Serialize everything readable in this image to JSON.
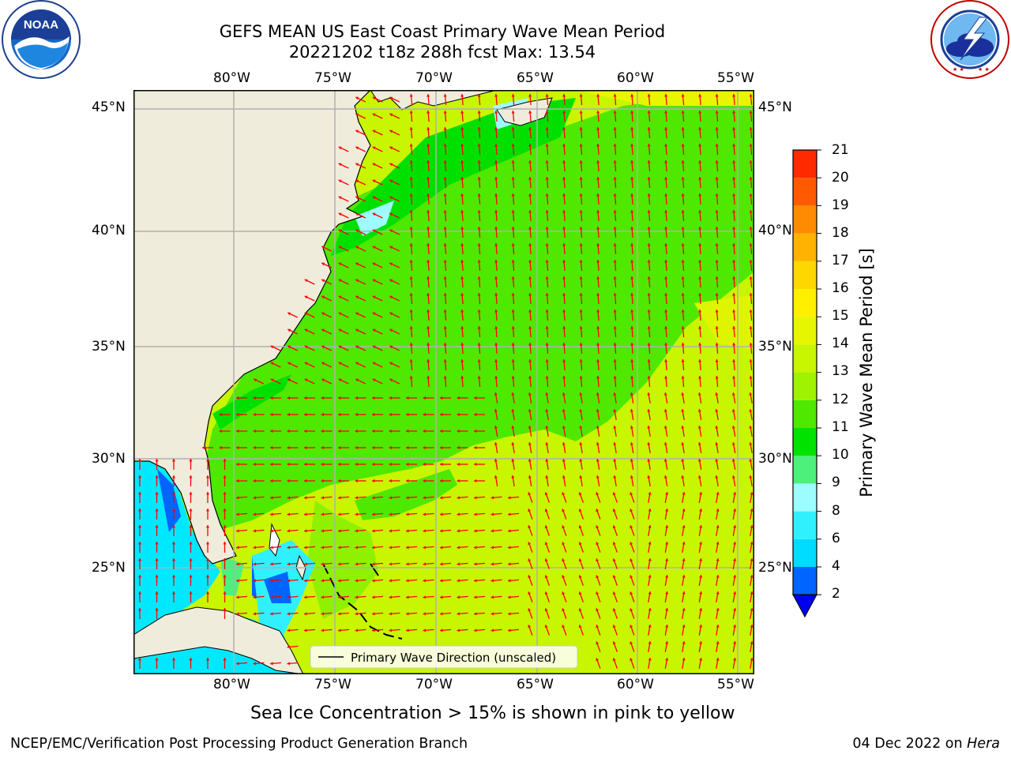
{
  "header": {
    "title_line1": "GEFS MEAN US East Coast Primary Wave Mean Period",
    "title_line2": "20221202 t18z 288h fcst   Max: 13.54"
  },
  "logos": {
    "left": {
      "name": "noaa-logo",
      "text": "NOAA",
      "ring_text": "NATIONAL OCEANIC AND ATMOSPHERIC ADMINISTRATION · U.S. DEPARTMENT OF COMMERCE"
    },
    "right": {
      "name": "nws-logo",
      "ring_text": "NATIONAL WEATHER SERVICE"
    }
  },
  "map": {
    "lon_labels_top": [
      "80°W",
      "75°W",
      "70°W",
      "65°W",
      "60°W",
      "55°W"
    ],
    "lon_labels_bottom": [
      "80°W",
      "75°W",
      "70°W",
      "65°W",
      "60°W",
      "55°W"
    ],
    "lat_labels_left": [
      "45°N",
      "40°N",
      "35°N",
      "30°N",
      "25°N"
    ],
    "lat_labels_right": [
      "45°N",
      "40°N",
      "35°N",
      "30°N",
      "25°N"
    ],
    "extent": {
      "lon_min": -85,
      "lon_max": -54.3,
      "lat_min": 20.5,
      "lat_max": 45.8
    },
    "land_color": "#efecdc",
    "grid_color": "#b0b0b0",
    "arrow_color": "#ff0000",
    "legend_label": "Primary Wave Direction (unscaled)"
  },
  "colorbar": {
    "label": "Primary Wave Mean Period [s]",
    "ticks": [
      "2",
      "4",
      "6",
      "8",
      "9",
      "10",
      "11",
      "12",
      "13",
      "14",
      "15",
      "16",
      "17",
      "18",
      "19",
      "20",
      "21"
    ],
    "colors": [
      "#0064ff",
      "#00dcff",
      "#30f0ff",
      "#9dfcff",
      "#4cf07a",
      "#00e300",
      "#4fe800",
      "#9ff200",
      "#c8f500",
      "#e6f500",
      "#fff000",
      "#ffd700",
      "#ffb200",
      "#ff8c00",
      "#ff5a00",
      "#ff2a00"
    ],
    "extend_color": "#0000ee"
  },
  "caption": "Sea Ice Concentration > 15% is shown in pink to yellow",
  "footer": {
    "left": "NCEP/EMC/Verification Post Processing Product Generation Branch",
    "right_prefix": "04 Dec 2022 on ",
    "right_machine": "Hera"
  }
}
